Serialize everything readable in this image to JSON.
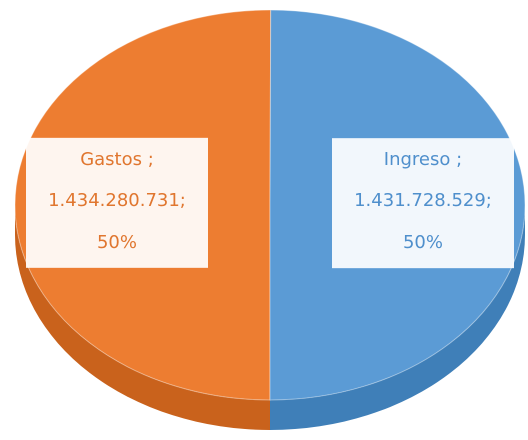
{
  "chart_data": {
    "type": "pie",
    "categories": [
      "Gastos ;",
      "Ingreso ;"
    ],
    "values": [
      1434280731,
      1431728529
    ],
    "value_labels": [
      "1.434.280.731;",
      "1.431.728.529;"
    ],
    "percentages": [
      50,
      50
    ],
    "percentage_labels": [
      "50%",
      "50%"
    ],
    "colors": [
      "#ed7d31",
      "#5b9bd5"
    ],
    "side_colors": [
      "#c9621c",
      "#3f7fb8"
    ],
    "label_colors": [
      "#e0762f",
      "#4f8fcc"
    ]
  }
}
